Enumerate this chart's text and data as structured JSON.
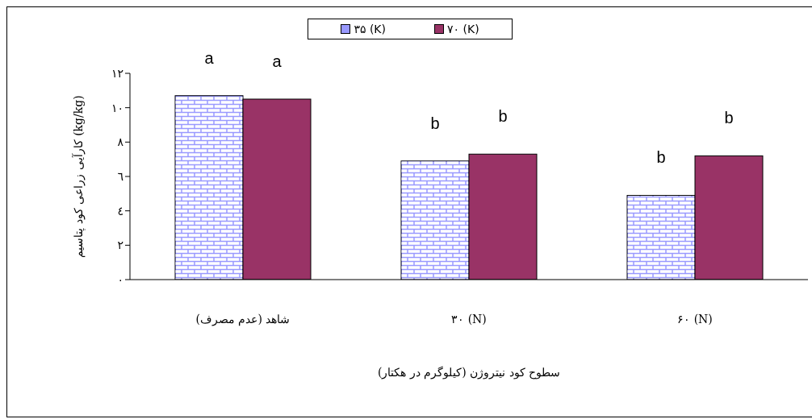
{
  "chart_data": {
    "type": "bar",
    "xlabel": "سطوح کود نیتروژن (کیلوگرم در هکتار)",
    "ylabel": "کارآیی زراعی کود پتاسیم (kg/kg)",
    "categories": [
      "شاهد (عدم مصرف)",
      "۳۰ (N)",
      "۶۰ (N)"
    ],
    "series": [
      {
        "name": "۳۵ (K)",
        "color": "#9999ff",
        "values": [
          10.7,
          6.9,
          4.9
        ]
      },
      {
        "name": "۷۰ (K)",
        "color": "#993366",
        "values": [
          10.5,
          7.3,
          7.2
        ]
      }
    ],
    "ylim": [
      0,
      12
    ],
    "yticks": [
      {
        "value": 0,
        "label": "۰"
      },
      {
        "value": 2,
        "label": "۲"
      },
      {
        "value": 4,
        "label": "٤"
      },
      {
        "value": 6,
        "label": "٦"
      },
      {
        "value": 8,
        "label": "٨"
      },
      {
        "value": 10,
        "label": "۱۰"
      },
      {
        "value": 12,
        "label": "۱۲"
      }
    ],
    "annotations": [
      "a",
      "a",
      "b",
      "b",
      "b",
      "b"
    ],
    "grid": false,
    "legend": "top"
  }
}
